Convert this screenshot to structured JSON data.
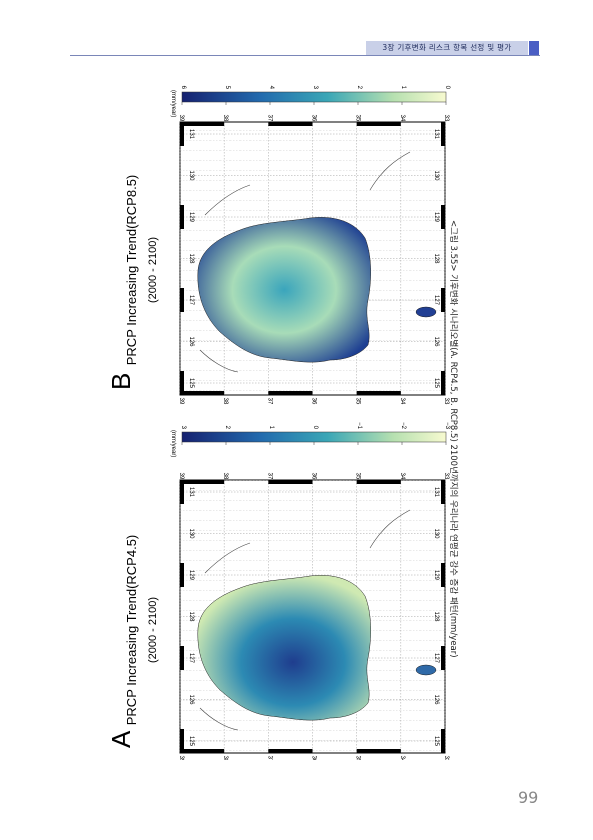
{
  "header": {
    "chapter_title": "3장 기후변화 리스크 항목 선정 및 평가",
    "accent_color": "#4a5ec4"
  },
  "panels": [
    {
      "letter": "A",
      "title": "PRCP Increasing Trend(RCP4.5)",
      "period": "(2000 - 2100)",
      "colorbar_unit": "(mm/year)",
      "colorbar_ticks": [
        "3",
        "2",
        "1",
        "0",
        "−1",
        "−2",
        "−3"
      ],
      "lon_ticks": [
        "125",
        "126",
        "127",
        "128",
        "129",
        "130",
        "131"
      ],
      "lat_ticks": [
        "39",
        "38",
        "37",
        "36",
        "35",
        "34",
        "33"
      ]
    },
    {
      "letter": "B",
      "title": "PRCP Increasing Trend(RCP8.5)",
      "period": "(2000 - 2100)",
      "colorbar_unit": "(mm/year)",
      "colorbar_ticks": [
        "6",
        "5",
        "4",
        "3",
        "2",
        "1",
        "0"
      ],
      "lon_ticks": [
        "125",
        "126",
        "127",
        "128",
        "129",
        "130",
        "131"
      ],
      "lat_ticks": [
        "39",
        "38",
        "37",
        "36",
        "35",
        "34",
        "33"
      ]
    }
  ],
  "caption": "<그림 3.55> 기후변화 시나리오별(A. RCP4.5, B. RCP8.5) 2100년까지의 우리나라 연평균 강수 증감 패턴(mm/year)",
  "page_number": "99",
  "colors": {
    "colorbar_dark": "#1b2a78",
    "colorbar_mid": "#2f8fb0",
    "colorbar_light": "#f4f8c4"
  }
}
